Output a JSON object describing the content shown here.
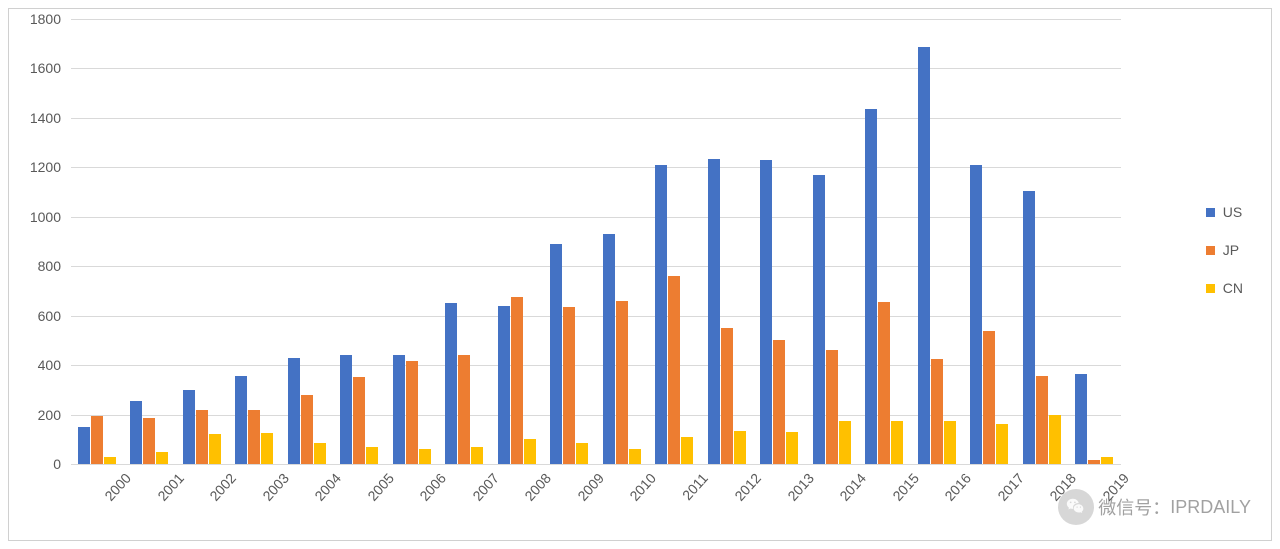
{
  "chart": {
    "type": "bar",
    "background_color": "#ffffff",
    "grid_color": "#d9d9d9",
    "border_color": "#d0d0d0",
    "label_color": "#595959",
    "label_fontsize": 14,
    "ylim": [
      0,
      1800
    ],
    "ytick_step": 200,
    "yticks": [
      0,
      200,
      400,
      600,
      800,
      1000,
      1200,
      1400,
      1600,
      1800
    ],
    "categories": [
      "2000",
      "2001",
      "2002",
      "2003",
      "2004",
      "2005",
      "2006",
      "2007",
      "2008",
      "2009",
      "2010",
      "2011",
      "2012",
      "2013",
      "2014",
      "2015",
      "2016",
      "2017",
      "2018",
      "2019"
    ],
    "series": [
      {
        "name": "US",
        "color": "#4472c4",
        "values": [
          150,
          255,
          300,
          355,
          430,
          440,
          440,
          650,
          640,
          890,
          930,
          1210,
          1235,
          1230,
          1170,
          1435,
          1685,
          1210,
          1105,
          365
        ]
      },
      {
        "name": "JP",
        "color": "#ed7d31",
        "values": [
          195,
          185,
          220,
          220,
          280,
          350,
          415,
          440,
          675,
          635,
          660,
          760,
          550,
          500,
          460,
          655,
          425,
          540,
          355,
          15
        ]
      },
      {
        "name": "CN",
        "color": "#ffc000",
        "values": [
          30,
          50,
          120,
          125,
          85,
          70,
          60,
          70,
          100,
          85,
          60,
          110,
          135,
          130,
          175,
          175,
          175,
          160,
          200,
          30
        ]
      }
    ],
    "x_label_rotation": -48,
    "legend": {
      "position": "right",
      "items": [
        "US",
        "JP",
        "CN"
      ]
    },
    "bar_group_gap_ratio": 0.25
  },
  "watermark": {
    "prefix": "微信号：",
    "text": "IPRDAILY"
  }
}
